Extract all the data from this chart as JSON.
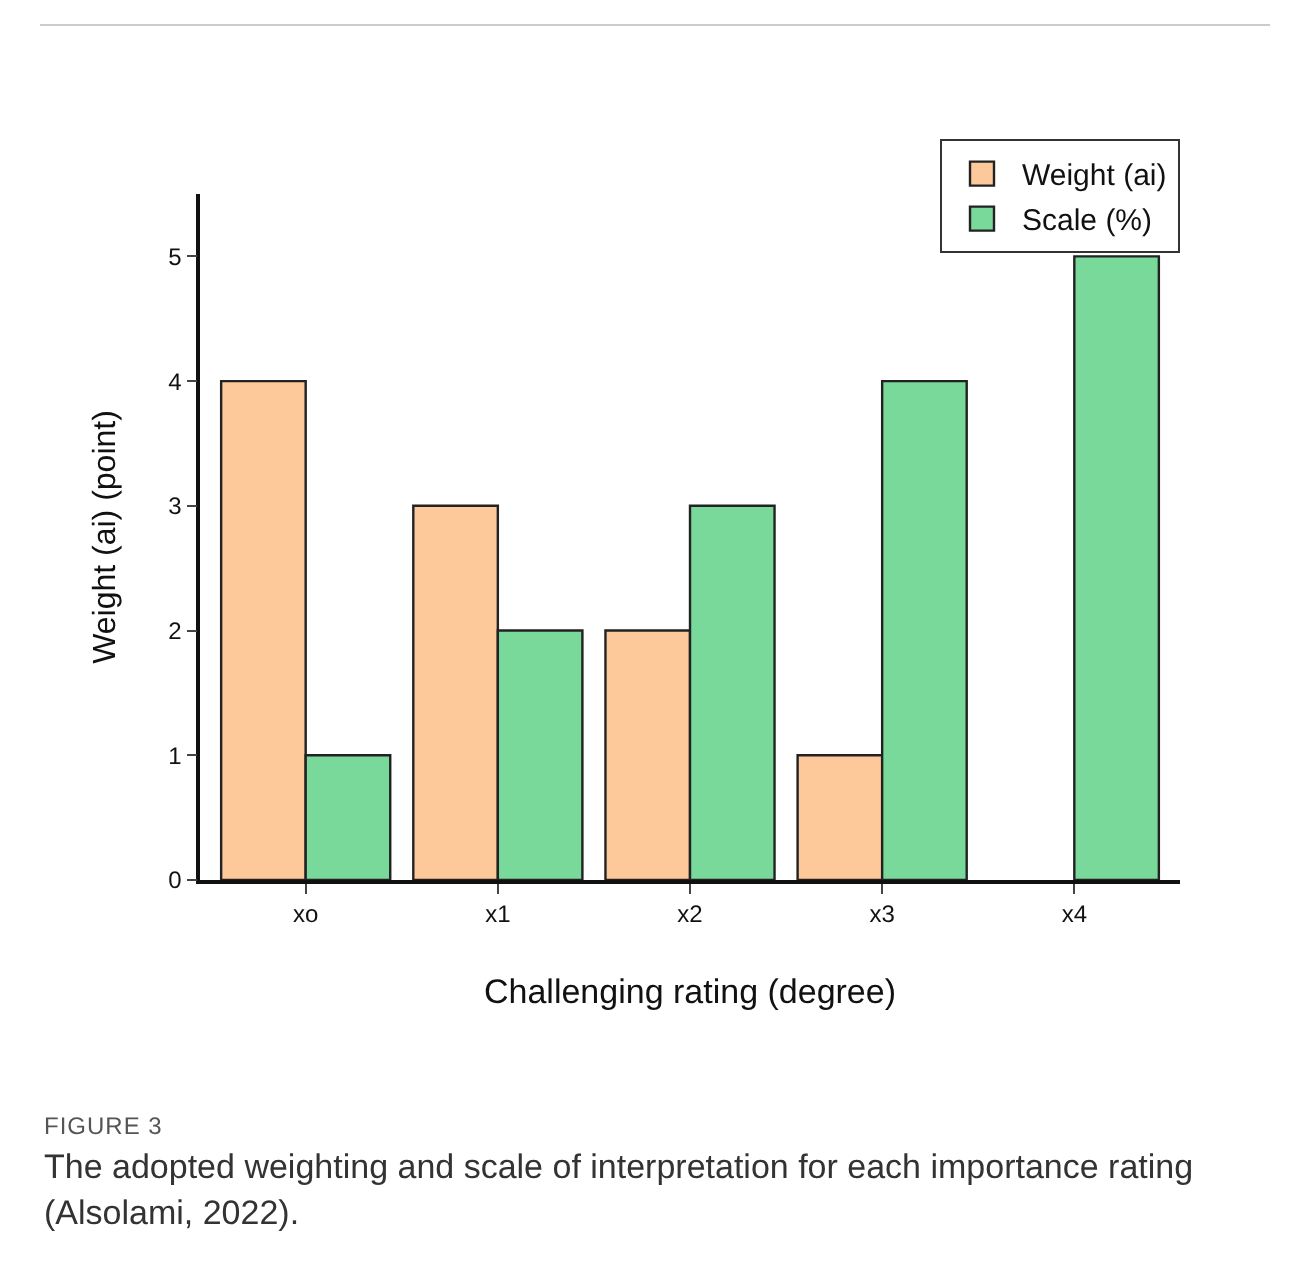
{
  "chart_data": {
    "type": "bar",
    "xlabel": "Challenging rating (degree)",
    "ylabel": "Weight (ai) (point)",
    "categories": [
      "xo",
      "x1",
      "x2",
      "x3",
      "x4"
    ],
    "series": [
      {
        "name": "Weight (ai)",
        "color": "#fdc99b",
        "values": [
          4,
          3,
          2,
          1,
          null
        ]
      },
      {
        "name": "Scale (%)",
        "color": "#79d99a",
        "values": [
          1,
          2,
          3,
          4,
          5
        ]
      }
    ],
    "ylim": [
      0,
      5.5
    ],
    "yticks": [
      0,
      1,
      2,
      3,
      4,
      5
    ],
    "grid": false,
    "legend": "top right",
    "annotations": [
      "FIGURE 3",
      "The adopted weighting and scale of interpretation for each importance rating (Alsolami, 2022)."
    ]
  }
}
